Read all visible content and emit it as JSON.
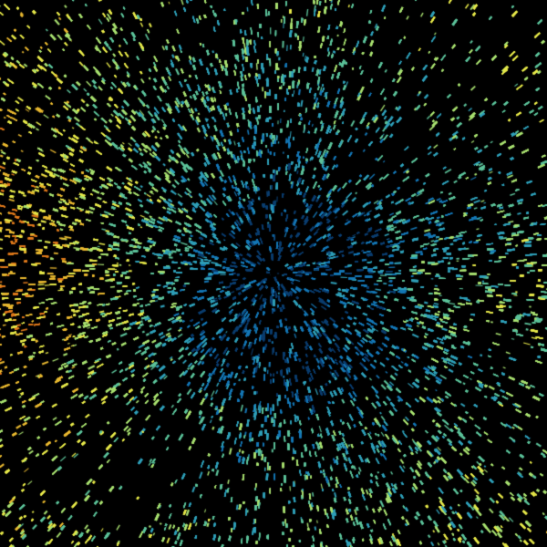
{
  "image": {
    "kind": "radar-ppi-scan",
    "background_color": "#000000",
    "center_marker_color": "#000000",
    "palette": [
      "#0b3d6e",
      "#1577b5",
      "#2f9fb8",
      "#5cc29a",
      "#a8e070",
      "#e6e84a",
      "#e8b830",
      "#e07a1c"
    ]
  }
}
